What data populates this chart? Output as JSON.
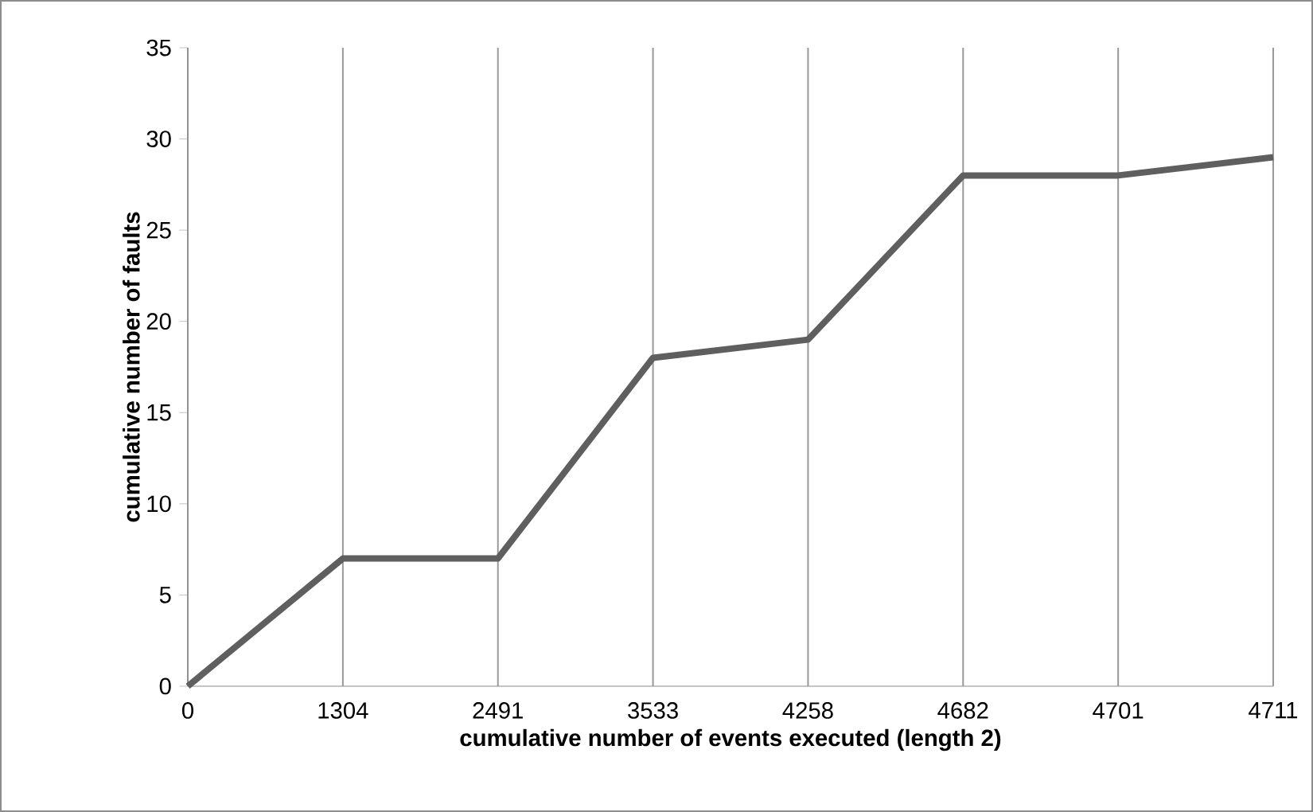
{
  "chart_data": {
    "type": "line",
    "xlabel": "cumulative number of events executed (length 2)",
    "ylabel": "cumulative number of faults",
    "categories": [
      "0",
      "1304",
      "2491",
      "3533",
      "4258",
      "4682",
      "4701",
      "4711"
    ],
    "series": [
      {
        "color": "#5f5f5f",
        "values": [
          0,
          7,
          7,
          18,
          19,
          28,
          28,
          29
        ]
      }
    ],
    "ylim": [
      0,
      35
    ],
    "yticks": [
      0,
      5,
      10,
      15,
      20,
      25,
      30,
      35
    ],
    "grid": "x"
  }
}
